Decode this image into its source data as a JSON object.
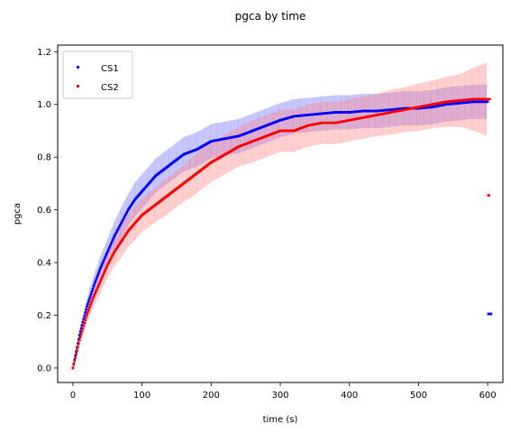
{
  "chart_data": {
    "type": "scatter",
    "title": "pgca by time",
    "xlabel": "time (s)",
    "ylabel": "pgca",
    "xlim": [
      -22,
      622
    ],
    "ylim": [
      -0.055,
      1.225
    ],
    "xticks": [
      0,
      100,
      200,
      300,
      400,
      500,
      600
    ],
    "yticks": [
      0.0,
      0.2,
      0.4,
      0.6,
      0.8,
      1.0,
      1.2
    ],
    "xtick_labels": [
      "0",
      "100",
      "200",
      "300",
      "400",
      "500",
      "600"
    ],
    "ytick_labels": [
      "0.0",
      "0.2",
      "0.4",
      "0.6",
      "0.8",
      "1.0",
      "1.2"
    ],
    "grid": false,
    "legend_position": "top-left",
    "series": [
      {
        "name": "CS1",
        "color": "#0000ff",
        "band_color": "#6b6bff",
        "x": [
          0,
          10,
          20,
          30,
          40,
          50,
          60,
          70,
          80,
          90,
          100,
          110,
          120,
          130,
          140,
          150,
          160,
          170,
          180,
          190,
          200,
          220,
          240,
          260,
          280,
          300,
          320,
          340,
          360,
          380,
          400,
          420,
          440,
          460,
          480,
          500,
          520,
          540,
          560,
          580,
          600
        ],
        "y": [
          0.0,
          0.13,
          0.23,
          0.31,
          0.38,
          0.44,
          0.5,
          0.55,
          0.6,
          0.64,
          0.67,
          0.7,
          0.73,
          0.75,
          0.77,
          0.79,
          0.81,
          0.82,
          0.83,
          0.845,
          0.86,
          0.87,
          0.88,
          0.9,
          0.92,
          0.94,
          0.955,
          0.96,
          0.965,
          0.97,
          0.97,
          0.975,
          0.975,
          0.98,
          0.985,
          0.985,
          0.99,
          1.0,
          1.005,
          1.01,
          1.01
        ],
        "err": [
          0.0,
          0.02,
          0.03,
          0.04,
          0.045,
          0.05,
          0.055,
          0.06,
          0.06,
          0.065,
          0.065,
          0.065,
          0.065,
          0.065,
          0.065,
          0.065,
          0.065,
          0.065,
          0.065,
          0.065,
          0.065,
          0.065,
          0.065,
          0.065,
          0.065,
          0.065,
          0.065,
          0.065,
          0.065,
          0.065,
          0.065,
          0.065,
          0.065,
          0.065,
          0.065,
          0.065,
          0.065,
          0.065,
          0.065,
          0.065,
          0.065
        ],
        "extra_points": {
          "x": [
            601,
            602,
            603,
            604,
            605
          ],
          "y": [
            0.205,
            0.205,
            0.205,
            0.205,
            0.205
          ]
        }
      },
      {
        "name": "CS2",
        "color": "#ff0000",
        "band_color": "#ff8080",
        "x": [
          0,
          10,
          20,
          30,
          40,
          50,
          60,
          70,
          80,
          90,
          100,
          110,
          120,
          130,
          140,
          150,
          160,
          170,
          180,
          190,
          200,
          220,
          240,
          260,
          280,
          300,
          320,
          340,
          360,
          380,
          400,
          420,
          440,
          460,
          480,
          500,
          520,
          540,
          560,
          580,
          600
        ],
        "y": [
          0.0,
          0.11,
          0.2,
          0.27,
          0.33,
          0.39,
          0.44,
          0.48,
          0.52,
          0.55,
          0.58,
          0.6,
          0.62,
          0.64,
          0.66,
          0.68,
          0.7,
          0.72,
          0.74,
          0.76,
          0.78,
          0.81,
          0.84,
          0.86,
          0.88,
          0.9,
          0.9,
          0.92,
          0.93,
          0.93,
          0.94,
          0.95,
          0.96,
          0.97,
          0.98,
          0.99,
          1.0,
          1.01,
          1.015,
          1.02,
          1.02
        ],
        "err": [
          0.0,
          0.02,
          0.03,
          0.04,
          0.045,
          0.05,
          0.055,
          0.06,
          0.06,
          0.065,
          0.065,
          0.065,
          0.065,
          0.07,
          0.07,
          0.07,
          0.07,
          0.075,
          0.075,
          0.075,
          0.075,
          0.075,
          0.075,
          0.08,
          0.08,
          0.08,
          0.08,
          0.08,
          0.08,
          0.08,
          0.08,
          0.08,
          0.08,
          0.085,
          0.085,
          0.09,
          0.09,
          0.095,
          0.1,
          0.12,
          0.14
        ],
        "extra_points": {
          "x": [
            601,
            602,
            603
          ],
          "y": [
            0.655,
            0.655,
            1.02
          ]
        }
      }
    ]
  }
}
